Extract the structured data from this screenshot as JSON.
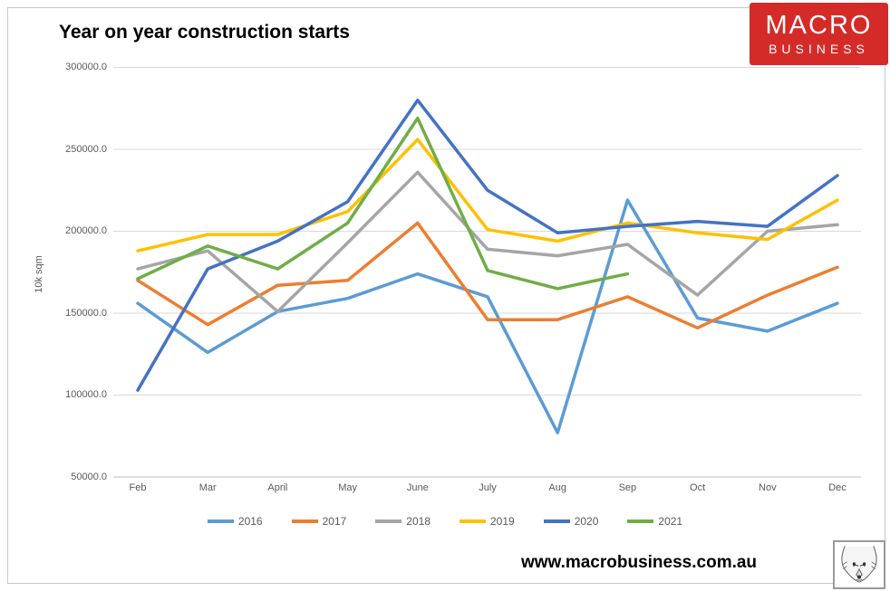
{
  "logo": {
    "line1": "MACRO",
    "line2": "BUSINESS",
    "bg_color": "#d52b28",
    "text_color": "#ffffff"
  },
  "footer": {
    "website": "www.macrobusiness.com.au",
    "fox_logo": "fox-sketch-icon"
  },
  "chart_data": {
    "type": "line",
    "title": "Year on year construction starts",
    "xlabel": "",
    "ylabel": "10k sqm",
    "categories": [
      "Feb",
      "Mar",
      "April",
      "May",
      "June",
      "July",
      "Aug",
      "Sep",
      "Oct",
      "Nov",
      "Dec"
    ],
    "ylim": [
      50000,
      300000
    ],
    "yticks": [
      {
        "value": 300000,
        "label": "300000.0"
      },
      {
        "value": 250000,
        "label": "250000.0"
      },
      {
        "value": 200000,
        "label": "200000.0"
      },
      {
        "value": 150000,
        "label": "150000.0"
      },
      {
        "value": 100000,
        "label": "100000.0"
      },
      {
        "value": 50000,
        "label": "50000.0"
      }
    ],
    "grid": "horizontal",
    "legend_position": "bottom",
    "series": [
      {
        "name": "2016",
        "color": "#5B9BD5",
        "values": [
          156000,
          126000,
          151000,
          159000,
          174000,
          160000,
          77000,
          219000,
          147000,
          139000,
          156000
        ]
      },
      {
        "name": "2017",
        "color": "#ED7D31",
        "values": [
          170000,
          143000,
          167000,
          170000,
          205000,
          146000,
          146000,
          160000,
          141000,
          161000,
          178000
        ]
      },
      {
        "name": "2018",
        "color": "#A5A5A5",
        "values": [
          177000,
          188000,
          151000,
          193000,
          236000,
          189000,
          185000,
          192000,
          161000,
          200000,
          204000
        ]
      },
      {
        "name": "2019",
        "color": "#FFC000",
        "values": [
          188000,
          198000,
          198000,
          212000,
          256000,
          201000,
          194000,
          205000,
          199000,
          195000,
          219000
        ]
      },
      {
        "name": "2020",
        "color": "#4472C4",
        "values": [
          103000,
          177000,
          194000,
          218000,
          280000,
          225000,
          199000,
          203000,
          206000,
          203000,
          234000
        ]
      },
      {
        "name": "2021",
        "color": "#70AD47",
        "values": [
          171000,
          191000,
          177000,
          205000,
          269000,
          176000,
          165000,
          174000,
          null,
          null,
          null
        ]
      }
    ]
  }
}
